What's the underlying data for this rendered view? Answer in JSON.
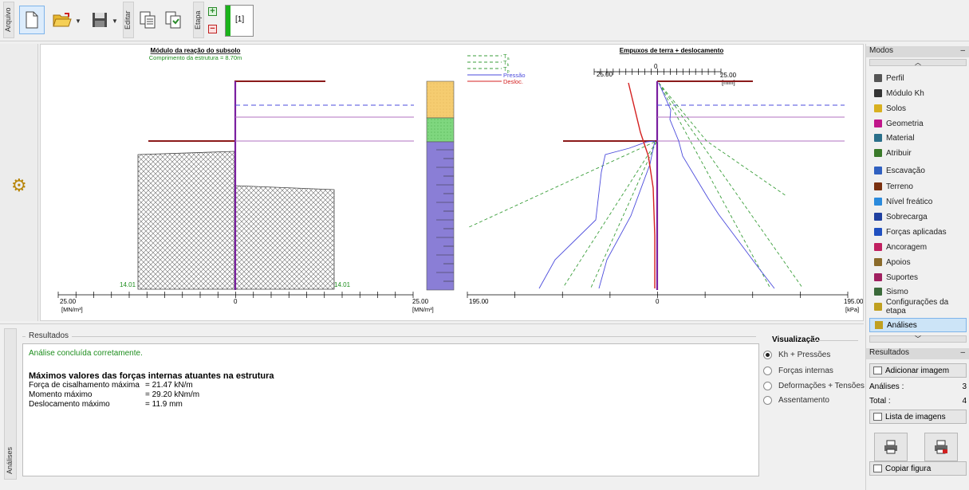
{
  "toolbar": {
    "tabs": [
      "Arquivo",
      "Editar",
      "Etapa"
    ],
    "stage_label": "[1]"
  },
  "chart_left": {
    "title": "Módulo da reação do subsolo",
    "subtitle": "Comprimento da estrutura = 8.70m",
    "tick_left": "25.00",
    "tick_zero": "0",
    "tick_right": "25.00",
    "unit_left": "[MN/m³]",
    "unit_right": "[MN/m³]",
    "value_left": "14.01",
    "value_right": "14.01"
  },
  "chart_right": {
    "title": "Empuxos de terra + deslocamento",
    "top_tick_left": "25.00",
    "top_tick_zero": "0",
    "top_tick_right": "25.00",
    "top_unit": "[mm]",
    "tick_left": "195.00",
    "tick_zero": "0",
    "tick_right": "195.00",
    "unit": "[kPa]"
  },
  "legend": [
    {
      "label": "T",
      "sub": "a",
      "color": "#3a9e3a",
      "dash": true
    },
    {
      "label": "T",
      "sub": "k",
      "color": "#3a9e3a",
      "dash": true
    },
    {
      "label": "T",
      "sub": "p",
      "color": "#3a9e3a",
      "dash": true
    },
    {
      "label": "Pressão",
      "sub": "",
      "color": "#4b4bdc",
      "dash": false
    },
    {
      "label": "Desloc.",
      "sub": "",
      "color": "#d42020",
      "dash": false
    }
  ],
  "results": {
    "title": "Resultados",
    "status": "Análise concluída corretamente.",
    "heading": "Máximos valores das forças internas atuantes na estrutura",
    "rows": [
      {
        "k": "Força de cisalhamento máxima",
        "v": "=  21.47  kN/m"
      },
      {
        "k": "Momento máximo",
        "v": "=  29.20  kNm/m"
      },
      {
        "k": "Deslocamento máximo",
        "v": "=    11.9  mm"
      }
    ],
    "side_tab": "Análises"
  },
  "visualization": {
    "title": "Visualização",
    "options": [
      "Kh + Pressões",
      "Forças internas",
      "Deformações + Tensões",
      "Assentamento"
    ],
    "selected": "Kh + Pressões"
  },
  "modes": {
    "title": "Modos",
    "items": [
      {
        "label": "Perfil",
        "color": "#555555"
      },
      {
        "label": "Módulo Kh",
        "color": "#333333"
      },
      {
        "label": "Solos",
        "color": "#d8b020"
      },
      {
        "label": "Geometria",
        "color": "#c0168a"
      },
      {
        "label": "Material",
        "color": "#2a6f8a"
      },
      {
        "label": "Atribuir",
        "color": "#3a7a2a"
      },
      {
        "label": "Escavação",
        "color": "#3060c0"
      },
      {
        "label": "Terreno",
        "color": "#7a3010"
      },
      {
        "label": "Nível freático",
        "color": "#2a8adc"
      },
      {
        "label": "Sobrecarga",
        "color": "#2040a0"
      },
      {
        "label": "Forças aplicadas",
        "color": "#2050c0"
      },
      {
        "label": "Ancoragem",
        "color": "#c02060"
      },
      {
        "label": "Apoios",
        "color": "#8a6a2a"
      },
      {
        "label": "Suportes",
        "color": "#a02060"
      },
      {
        "label": "Sismo",
        "color": "#3a6a3a"
      },
      {
        "label": "Configurações da etapa",
        "color": "#c0a020"
      }
    ],
    "active": "Análises"
  },
  "results_panel": {
    "title": "Resultados",
    "add_image": "Adicionar imagem",
    "analyses_label": "Análises :",
    "analyses_value": "3",
    "total_label": "Total :",
    "total_value": "4",
    "image_list": "Lista de imagens",
    "copy_figure": "Copiar figura"
  },
  "chart_data": [
    {
      "type": "area",
      "title": "Módulo da reação do subsolo",
      "subtitle": "Comprimento da estrutura = 8.70m",
      "xlabel": "[MN/m³]",
      "xlim": [
        -25,
        25
      ],
      "series": [
        {
          "values": [
            14.01,
            14.01
          ]
        }
      ]
    },
    {
      "type": "line",
      "title": "Empuxos de terra + deslocamento",
      "xlabel": "[kPa]",
      "xlim": [
        -195,
        195
      ],
      "x2label": "[mm]",
      "x2lim": [
        -25,
        25
      ],
      "series": [
        {
          "name": "Ta"
        },
        {
          "name": "Tk"
        },
        {
          "name": "Tp"
        },
        {
          "name": "Pressão"
        },
        {
          "name": "Desloc."
        }
      ]
    }
  ]
}
